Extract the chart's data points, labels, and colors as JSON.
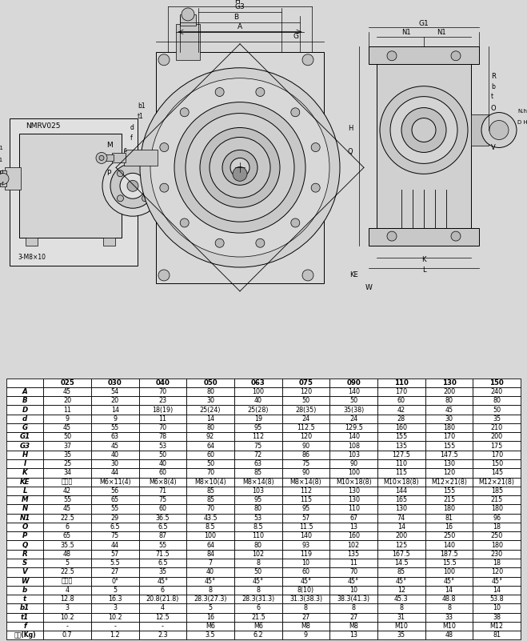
{
  "bg_color": "#d8d8d8",
  "header_row": [
    "",
    "025",
    "030",
    "040",
    "050",
    "063",
    "075",
    "090",
    "110",
    "130",
    "150"
  ],
  "rows": [
    [
      "A",
      "45",
      "54",
      "70",
      "80",
      "100",
      "120",
      "140",
      "170",
      "200",
      "240"
    ],
    [
      "B",
      "20",
      "20",
      "23",
      "30",
      "40",
      "50",
      "50",
      "60",
      "80",
      "80"
    ],
    [
      "D",
      "11",
      "14",
      "18(19)",
      "25(24)",
      "25(28)",
      "28(35)",
      "35(38)",
      "42",
      "45",
      "50"
    ],
    [
      "d",
      "9",
      "9",
      "11",
      "14",
      "19",
      "24",
      "24",
      "28",
      "30",
      "35"
    ],
    [
      "G",
      "45",
      "55",
      "70",
      "80",
      "95",
      "112.5",
      "129.5",
      "160",
      "180",
      "210"
    ],
    [
      "G1",
      "50",
      "63",
      "78",
      "92",
      "112",
      "120",
      "140",
      "155",
      "170",
      "200"
    ],
    [
      "G3",
      "37",
      "45",
      "53",
      "64",
      "75",
      "90",
      "108",
      "135",
      "155",
      "175"
    ],
    [
      "H",
      "35",
      "40",
      "50",
      "60",
      "72",
      "86",
      "103",
      "127.5",
      "147.5",
      "170"
    ],
    [
      "I",
      "25",
      "30",
      "40",
      "50",
      "63",
      "75",
      "90",
      "110",
      "130",
      "150"
    ],
    [
      "K",
      "34",
      "44",
      "60",
      "70",
      "85",
      "90",
      "100",
      "115",
      "120",
      "145"
    ],
    [
      "KE",
      "见上图",
      "M6×11(4)",
      "M6×8(4)",
      "M8×10(4)",
      "M8×14(8)",
      "M8×14(8)",
      "M10×18(8)",
      "M10×18(8)",
      "M12×21(8)",
      "M12×21(8)"
    ],
    [
      "L",
      "42",
      "56",
      "71",
      "85",
      "103",
      "112",
      "130",
      "144",
      "155",
      "185"
    ],
    [
      "M",
      "55",
      "65",
      "75",
      "85",
      "95",
      "115",
      "130",
      "165",
      "215",
      "215"
    ],
    [
      "N",
      "45",
      "55",
      "60",
      "70",
      "80",
      "95",
      "110",
      "130",
      "180",
      "180"
    ],
    [
      "N1",
      "22.5",
      "29",
      "36.5",
      "43.5",
      "53",
      "57",
      "67",
      "74",
      "81",
      "96"
    ],
    [
      "O",
      "6",
      "6.5",
      "6.5",
      "8.5",
      "8.5",
      "11.5",
      "13",
      "14",
      "16",
      "18"
    ],
    [
      "P",
      "65",
      "75",
      "87",
      "100",
      "110",
      "140",
      "160",
      "200",
      "250",
      "250"
    ],
    [
      "Q",
      "35.5",
      "44",
      "55",
      "64",
      "80",
      "93",
      "102",
      "125",
      "140",
      "180"
    ],
    [
      "R",
      "48",
      "57",
      "71.5",
      "84",
      "102",
      "119",
      "135",
      "167.5",
      "187.5",
      "230"
    ],
    [
      "S",
      "5",
      "5.5",
      "6.5",
      "7",
      "8",
      "10",
      "11",
      "14.5",
      "15.5",
      "18"
    ],
    [
      "V",
      "22.5",
      "27",
      "35",
      "40",
      "50",
      "60",
      "70",
      "85",
      "100",
      "120"
    ],
    [
      "W",
      "见上图",
      "0°",
      "45°",
      "45°",
      "45°",
      "45°",
      "45°",
      "45°",
      "45°",
      "45°"
    ],
    [
      "b",
      "4",
      "5",
      "6",
      "8",
      "8",
      "8(10)",
      "10",
      "12",
      "14",
      "14"
    ],
    [
      "t",
      "12.8",
      "16.3",
      "20.8(21.8)",
      "28.3(27.3)",
      "28.3(31.3)",
      "31.3(38.3)",
      "38.3(41.3)",
      "45.3",
      "48.8",
      "53.8"
    ],
    [
      "b1",
      "3",
      "3",
      "4",
      "5",
      "6",
      "8",
      "8",
      "8",
      "8",
      "10"
    ],
    [
      "t1",
      "10.2",
      "10.2",
      "12.5",
      "16",
      "21.5",
      "27",
      "27",
      "31",
      "33",
      "38"
    ],
    [
      "f",
      "-",
      "-",
      "-",
      "M6",
      "M6",
      "M8",
      "M8",
      "M10",
      "M10",
      "M12"
    ],
    [
      "重量(Kg)",
      "0.7",
      "1.2",
      "2.3",
      "3.5",
      "6.2",
      "9",
      "13",
      "35",
      "48",
      "81"
    ]
  ]
}
